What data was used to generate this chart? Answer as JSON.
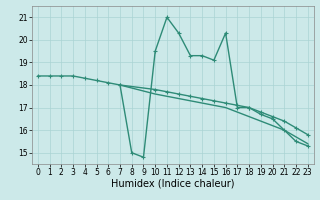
{
  "line1": {
    "x": [
      0,
      1,
      2,
      3,
      4,
      5,
      6,
      7,
      8,
      9,
      10,
      11,
      12,
      13,
      14,
      15,
      16,
      17,
      18,
      19,
      20,
      21,
      22,
      23
    ],
    "y": [
      18.4,
      18.4,
      18.4,
      18.4,
      18.3,
      18.2,
      18.1,
      18.0,
      15.0,
      14.8,
      19.5,
      21.0,
      20.3,
      19.3,
      19.3,
      19.1,
      20.3,
      17.0,
      17.0,
      16.7,
      16.5,
      16.0,
      15.5,
      15.3
    ]
  },
  "line2": {
    "x": [
      7,
      10,
      11,
      12,
      13,
      14,
      15,
      16,
      17,
      18,
      19,
      20,
      21,
      22,
      23
    ],
    "y": [
      18.0,
      17.8,
      17.7,
      17.6,
      17.5,
      17.4,
      17.3,
      17.2,
      17.1,
      17.0,
      16.8,
      16.6,
      16.4,
      16.1,
      15.8
    ]
  },
  "line3": {
    "x": [
      7,
      10,
      11,
      12,
      13,
      14,
      15,
      16,
      17,
      18,
      19,
      20,
      21,
      22,
      23
    ],
    "y": [
      18.0,
      17.6,
      17.5,
      17.4,
      17.3,
      17.2,
      17.1,
      17.0,
      16.8,
      16.6,
      16.4,
      16.2,
      16.0,
      15.7,
      15.4
    ]
  },
  "color": "#2e8b77",
  "bg_color": "#cce9e9",
  "grid_color": "#aad4d4",
  "xlabel": "Humidex (Indice chaleur)",
  "xlabel_fontsize": 7,
  "xlim": [
    -0.5,
    23.5
  ],
  "ylim": [
    14.5,
    21.5
  ],
  "yticks": [
    15,
    16,
    17,
    18,
    19,
    20,
    21
  ],
  "xticks": [
    0,
    1,
    2,
    3,
    4,
    5,
    6,
    7,
    8,
    9,
    10,
    11,
    12,
    13,
    14,
    15,
    16,
    17,
    18,
    19,
    20,
    21,
    22,
    23
  ],
  "tick_fontsize": 5.5,
  "linewidth": 1.0,
  "marker": "+",
  "markersize": 3.5,
  "markeredgewidth": 0.8
}
